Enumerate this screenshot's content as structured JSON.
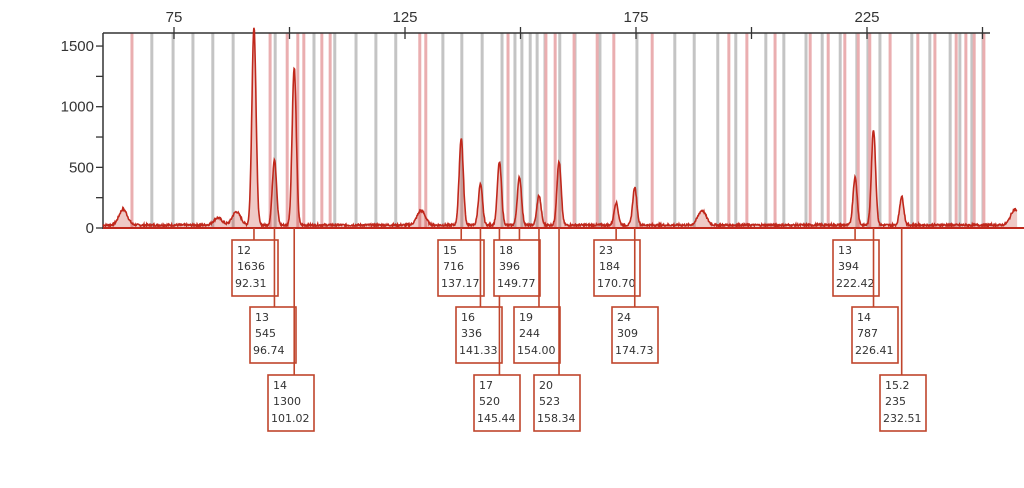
{
  "chart_data": {
    "type": "line",
    "title": "",
    "xlabel": "",
    "ylabel": "",
    "xlim": [
      59.6,
      257
    ],
    "ylim": [
      0,
      1607
    ],
    "x_ticks": [
      75,
      100,
      125,
      150,
      175,
      200,
      225,
      250
    ],
    "x_tick_labels": [
      "75",
      "",
      "125",
      "",
      "175",
      "",
      "225",
      ""
    ],
    "y_ticks": [
      0,
      250,
      500,
      750,
      1000,
      1250,
      1500
    ],
    "y_tick_labels": [
      "0",
      "",
      "500",
      "",
      "1000",
      "",
      "1500"
    ],
    "trace_color": "#c0281c",
    "label_box_color": "#c0452c",
    "bin_gray_color": "#c4c4c4",
    "bin_pink_color": "#eaaeb0",
    "alleles": [
      {
        "allele": "12",
        "height": "1636",
        "size": "92.31",
        "x": 92.31,
        "y": 1636
      },
      {
        "allele": "13",
        "height": "545",
        "size": "96.74",
        "x": 96.74,
        "y": 545
      },
      {
        "allele": "14",
        "height": "1300",
        "size": "101.02",
        "x": 101.02,
        "y": 1300
      },
      {
        "allele": "15",
        "height": "716",
        "size": "137.17",
        "x": 137.17,
        "y": 716
      },
      {
        "allele": "16",
        "height": "336",
        "size": "141.33",
        "x": 141.33,
        "y": 336
      },
      {
        "allele": "17",
        "height": "520",
        "size": "145.44",
        "x": 145.44,
        "y": 520
      },
      {
        "allele": "18",
        "height": "396",
        "size": "149.77",
        "x": 149.77,
        "y": 396
      },
      {
        "allele": "19",
        "height": "244",
        "size": "154.00",
        "x": 154.0,
        "y": 244
      },
      {
        "allele": "20",
        "height": "523",
        "size": "158.34",
        "x": 158.34,
        "y": 523
      },
      {
        "allele": "23",
        "height": "184",
        "size": "170.70",
        "x": 170.7,
        "y": 184
      },
      {
        "allele": "24",
        "height": "309",
        "size": "174.73",
        "x": 174.73,
        "y": 309
      },
      {
        "allele": "13",
        "height": "394",
        "size": "222.42",
        "x": 222.42,
        "y": 394
      },
      {
        "allele": "14",
        "height": "787",
        "size": "226.41",
        "x": 226.41,
        "y": 787
      },
      {
        "allele": "15.2",
        "height": "235",
        "size": "232.51",
        "x": 232.51,
        "y": 235
      }
    ],
    "minor_peaks": [
      {
        "x": 64.0,
        "y": 130
      },
      {
        "x": 84.5,
        "y": 60
      },
      {
        "x": 88.5,
        "y": 110
      },
      {
        "x": 128.5,
        "y": 120
      },
      {
        "x": 189.3,
        "y": 120
      },
      {
        "x": 257,
        "y": 130
      }
    ],
    "bins_gray": [
      70.2,
      74.8,
      79.1,
      83.4,
      87.8,
      96.9,
      105.3,
      109.8,
      114.4,
      118.7,
      123.0,
      133.2,
      137.3,
      141.7,
      146.0,
      148.8,
      150.3,
      152.1,
      153.6,
      155.3,
      158.5,
      161.8,
      167.2,
      175.2,
      183.4,
      187.6,
      192.7,
      196.6,
      203.1,
      207.0,
      211.8,
      215.3,
      219.2,
      222.8,
      225.2,
      227.8,
      234.7,
      238.6,
      243.0,
      245.1,
      247.7,
      250.1
    ],
    "bins_pink": [
      65.9,
      95.8,
      99.5,
      101.8,
      103.1,
      107.0,
      108.8,
      128.2,
      129.5,
      147.3,
      155.5,
      157.5,
      161.6,
      166.6,
      170.2,
      178.5,
      195.1,
      199.0,
      205.1,
      212.7,
      216.6,
      220.2,
      223.1,
      225.6,
      230.0,
      236.0,
      239.7,
      244.3,
      246.4,
      248.2,
      250.3
    ]
  }
}
